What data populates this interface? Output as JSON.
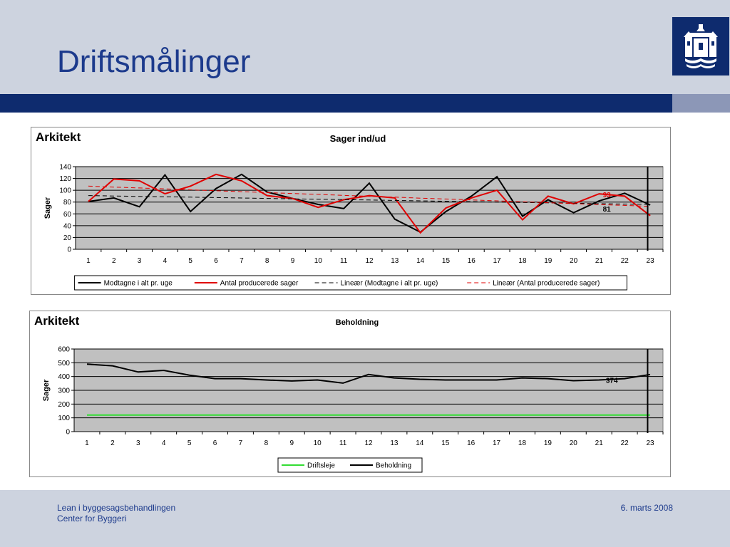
{
  "slide": {
    "title": "Driftsmålinger",
    "footer_line1": "Lean i byggesagsbehandlingen",
    "footer_line2": "Center for Byggeri",
    "footer_date": "6. marts 2008",
    "logo_icon": "city-coat-of-arms-icon"
  },
  "colors": {
    "navy": "#0e2b6e",
    "title_blue": "#1c3a8c",
    "plot_bg": "#c0c0c0",
    "black_series": "#000000",
    "red_series": "#e00000",
    "green_series": "#33dd33"
  },
  "chart_data": [
    {
      "type": "line",
      "panel_label": "Arkitekt",
      "title": "Sager ind/ud",
      "xlabel": "",
      "ylabel": "Sager",
      "ylim": [
        0,
        140
      ],
      "yticks": [
        0,
        20,
        40,
        60,
        80,
        100,
        120,
        140
      ],
      "x": [
        1,
        2,
        3,
        4,
        5,
        6,
        7,
        8,
        9,
        10,
        11,
        12,
        13,
        14,
        15,
        16,
        17,
        18,
        19,
        20,
        21,
        22,
        23
      ],
      "grid": true,
      "legend": "bottom",
      "series": [
        {
          "name": "Modtagne i alt pr. uge",
          "color": "#000000",
          "dash": false,
          "values": [
            81,
            87,
            72,
            126,
            64,
            103,
            127,
            97,
            86,
            76,
            69,
            112,
            51,
            29,
            64,
            90,
            123,
            56,
            84,
            62,
            82,
            95,
            75
          ]
        },
        {
          "name": "Antal producerede sager",
          "color": "#e00000",
          "dash": false,
          "values": [
            81,
            119,
            116,
            94,
            107,
            127,
            116,
            91,
            86,
            71,
            84,
            91,
            87,
            28,
            70,
            87,
            100,
            50,
            90,
            77,
            94,
            90,
            57
          ]
        },
        {
          "name": "Lineær (Modtagne i alt pr. uge)",
          "color": "#000000",
          "dash": true,
          "values": [
            91,
            90.3,
            89.6,
            88.9,
            88.3,
            87.6,
            86.9,
            86.2,
            85.5,
            84.8,
            84.1,
            83.5,
            82.8,
            82.1,
            81.4,
            80.7,
            80,
            79.3,
            78.7,
            78,
            77.3,
            76.6,
            75.9
          ]
        },
        {
          "name": "Lineær (Antal producerede sager)",
          "color": "#e00000",
          "dash": true,
          "values": [
            107,
            105.4,
            103.9,
            102.3,
            100.8,
            99.2,
            97.6,
            96.1,
            94.5,
            93,
            91.4,
            89.8,
            88.3,
            86.7,
            85.2,
            83.6,
            82.1,
            80.5,
            78.9,
            77.4,
            75.8,
            74.3,
            72.7
          ]
        }
      ],
      "annotations": [
        {
          "text": "93",
          "x": 21.3,
          "y": 93,
          "color": "#e00000"
        },
        {
          "text": "81",
          "x": 21.3,
          "y": 69,
          "color": "#000000"
        }
      ],
      "marker_line_x": 22.9
    },
    {
      "type": "line",
      "panel_label": "Arkitekt",
      "title": "Beholdning",
      "xlabel": "",
      "ylabel": "Sager",
      "ylim": [
        0,
        600
      ],
      "yticks": [
        0,
        100,
        200,
        300,
        400,
        500,
        600
      ],
      "x": [
        1,
        2,
        3,
        4,
        5,
        6,
        7,
        8,
        9,
        10,
        11,
        12,
        13,
        14,
        15,
        16,
        17,
        18,
        19,
        20,
        21,
        22,
        23
      ],
      "grid": true,
      "legend": "bottom",
      "series": [
        {
          "name": "Driftsleje",
          "color": "#33dd33",
          "dash": false,
          "values": [
            120,
            120,
            120,
            120,
            120,
            120,
            120,
            120,
            120,
            120,
            120,
            120,
            120,
            120,
            120,
            120,
            120,
            120,
            120,
            120,
            120,
            120,
            120
          ]
        },
        {
          "name": "Beholdning",
          "color": "#000000",
          "dash": false,
          "values": [
            490,
            478,
            433,
            445,
            410,
            385,
            385,
            375,
            368,
            375,
            352,
            415,
            390,
            380,
            375,
            375,
            375,
            390,
            385,
            370,
            375,
            385,
            415
          ]
        }
      ],
      "annotations": [
        {
          "text": "374",
          "x": 21.5,
          "y": 374,
          "color": "#000000"
        }
      ],
      "marker_line_x": 22.9
    }
  ]
}
